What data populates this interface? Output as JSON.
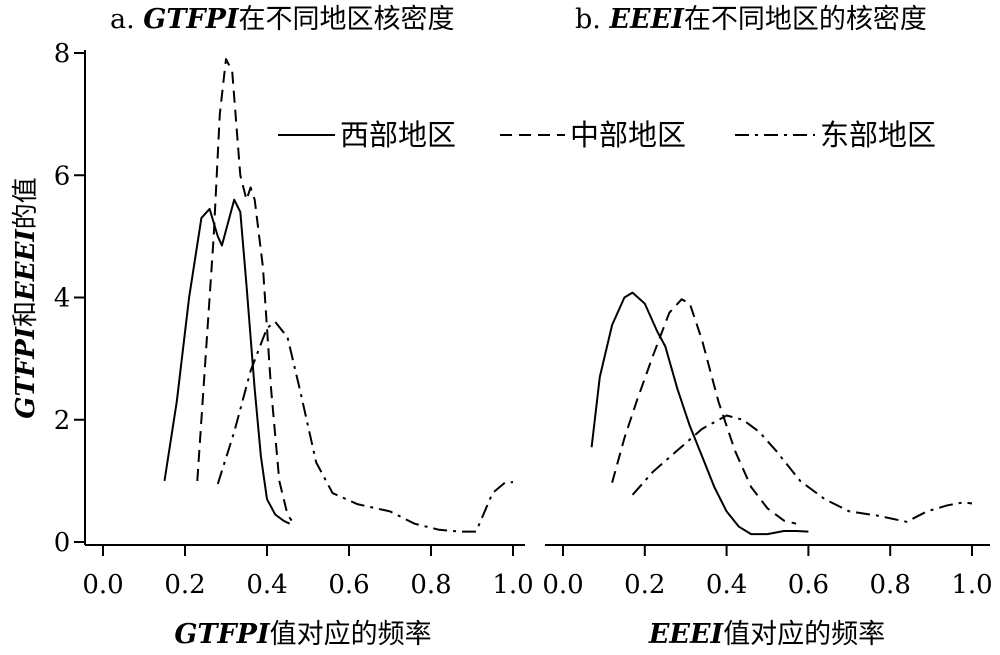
{
  "figure": {
    "ylabel_prefix": "GTFPI",
    "ylabel_and": "和",
    "ylabel_mid": "EEEI",
    "ylabel_suffix": "的值"
  },
  "legend": {
    "west": "西部地区",
    "central": "中部地区",
    "east": "东部地区"
  },
  "panels": [
    {
      "title_prefix": "a. ",
      "title_var": "GTFPI",
      "title_rest": "在不同地区核密度",
      "xlabel_var": "GTFPI",
      "xlabel_rest": "值对应的频率"
    },
    {
      "title_prefix": "b. ",
      "title_var": "EEEI",
      "title_rest": "在不同地区的核密度",
      "xlabel_var": "EEEI",
      "xlabel_rest": "值对应的频率"
    }
  ],
  "chart_data": [
    {
      "type": "line",
      "title": "a. GTFPI在不同地区核密度",
      "xlabel": "GTFPI值对应的频率",
      "ylabel": "GTFPI和EEEI的值",
      "xlim": [
        0,
        1
      ],
      "ylim": [
        0,
        8
      ],
      "xticks": [
        "0.0",
        "0.2",
        "0.4",
        "0.6",
        "0.8",
        "1.0"
      ],
      "yticks": [
        "0",
        "2",
        "4",
        "6",
        "8"
      ],
      "series": [
        {
          "name": "西部地区",
          "style": "solid",
          "points": [
            [
              0.15,
              1.0
            ],
            [
              0.18,
              2.3
            ],
            [
              0.21,
              4.0
            ],
            [
              0.24,
              5.3
            ],
            [
              0.26,
              5.45
            ],
            [
              0.28,
              5.0
            ],
            [
              0.29,
              4.85
            ],
            [
              0.31,
              5.35
            ],
            [
              0.32,
              5.6
            ],
            [
              0.335,
              5.4
            ],
            [
              0.35,
              4.2
            ],
            [
              0.37,
              2.5
            ],
            [
              0.385,
              1.4
            ],
            [
              0.4,
              0.7
            ],
            [
              0.42,
              0.45
            ],
            [
              0.44,
              0.35
            ],
            [
              0.455,
              0.3
            ]
          ]
        },
        {
          "name": "中部地区",
          "style": "dashed",
          "points": [
            [
              0.23,
              1.0
            ],
            [
              0.25,
              3.0
            ],
            [
              0.27,
              5.0
            ],
            [
              0.285,
              7.0
            ],
            [
              0.3,
              7.9
            ],
            [
              0.315,
              7.7
            ],
            [
              0.335,
              6.0
            ],
            [
              0.35,
              5.6
            ],
            [
              0.36,
              5.8
            ],
            [
              0.37,
              5.6
            ],
            [
              0.39,
              4.5
            ],
            [
              0.41,
              2.5
            ],
            [
              0.43,
              1.0
            ],
            [
              0.45,
              0.45
            ],
            [
              0.46,
              0.35
            ]
          ]
        },
        {
          "name": "东部地区",
          "style": "dashdot",
          "points": [
            [
              0.28,
              0.95
            ],
            [
              0.32,
              1.8
            ],
            [
              0.36,
              2.8
            ],
            [
              0.4,
              3.5
            ],
            [
              0.42,
              3.6
            ],
            [
              0.45,
              3.35
            ],
            [
              0.48,
              2.5
            ],
            [
              0.52,
              1.3
            ],
            [
              0.56,
              0.8
            ],
            [
              0.62,
              0.62
            ],
            [
              0.7,
              0.5
            ],
            [
              0.76,
              0.3
            ],
            [
              0.82,
              0.2
            ],
            [
              0.87,
              0.17
            ],
            [
              0.91,
              0.17
            ],
            [
              0.95,
              0.8
            ],
            [
              0.98,
              0.97
            ],
            [
              1.0,
              0.98
            ]
          ]
        }
      ]
    },
    {
      "type": "line",
      "title": "b. EEEI在不同地区的核密度",
      "xlabel": "EEEI值对应的频率",
      "ylabel": "GTFPI和EEEI的值",
      "xlim": [
        0,
        1
      ],
      "ylim": [
        0,
        8
      ],
      "xticks": [
        "0.0",
        "0.2",
        "0.4",
        "0.6",
        "0.8",
        "1.0"
      ],
      "series": [
        {
          "name": "西部地区",
          "style": "solid",
          "points": [
            [
              0.07,
              1.55
            ],
            [
              0.09,
              2.7
            ],
            [
              0.12,
              3.55
            ],
            [
              0.15,
              4.0
            ],
            [
              0.17,
              4.08
            ],
            [
              0.2,
              3.9
            ],
            [
              0.23,
              3.45
            ],
            [
              0.25,
              3.2
            ],
            [
              0.28,
              2.5
            ],
            [
              0.31,
              1.9
            ],
            [
              0.34,
              1.4
            ],
            [
              0.37,
              0.9
            ],
            [
              0.4,
              0.5
            ],
            [
              0.43,
              0.25
            ],
            [
              0.46,
              0.13
            ],
            [
              0.5,
              0.13
            ],
            [
              0.54,
              0.18
            ],
            [
              0.57,
              0.18
            ],
            [
              0.6,
              0.17
            ]
          ]
        },
        {
          "name": "中部地区",
          "style": "dashed",
          "points": [
            [
              0.12,
              0.97
            ],
            [
              0.15,
              1.7
            ],
            [
              0.18,
              2.3
            ],
            [
              0.22,
              3.05
            ],
            [
              0.26,
              3.75
            ],
            [
              0.29,
              3.97
            ],
            [
              0.31,
              3.9
            ],
            [
              0.34,
              3.3
            ],
            [
              0.38,
              2.3
            ],
            [
              0.42,
              1.5
            ],
            [
              0.46,
              0.9
            ],
            [
              0.5,
              0.55
            ],
            [
              0.54,
              0.35
            ],
            [
              0.57,
              0.3
            ]
          ]
        },
        {
          "name": "东部地区",
          "style": "dashdot",
          "points": [
            [
              0.17,
              0.77
            ],
            [
              0.22,
              1.15
            ],
            [
              0.28,
              1.5
            ],
            [
              0.34,
              1.85
            ],
            [
              0.4,
              2.07
            ],
            [
              0.44,
              2.0
            ],
            [
              0.48,
              1.8
            ],
            [
              0.52,
              1.5
            ],
            [
              0.58,
              1.0
            ],
            [
              0.64,
              0.7
            ],
            [
              0.7,
              0.5
            ],
            [
              0.77,
              0.43
            ],
            [
              0.84,
              0.33
            ],
            [
              0.89,
              0.5
            ],
            [
              0.94,
              0.6
            ],
            [
              0.98,
              0.65
            ],
            [
              1.0,
              0.63
            ]
          ]
        }
      ]
    }
  ]
}
